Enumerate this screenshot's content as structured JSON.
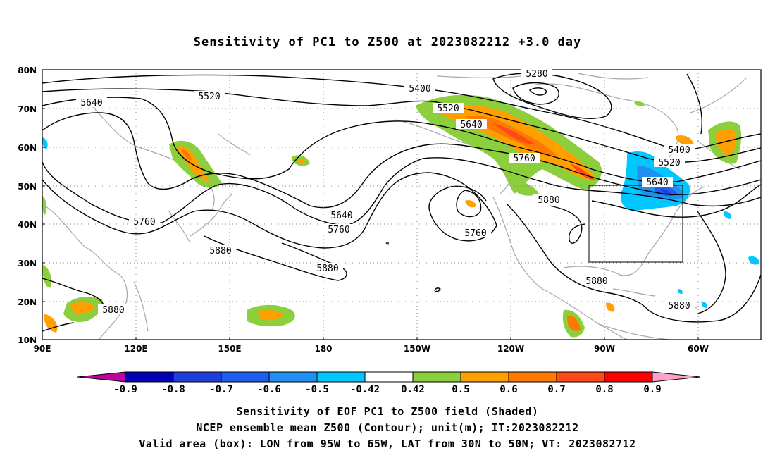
{
  "title": "Sensitivity of PC1 to Z500 at 2023082212 +3.0 day",
  "lat_labels": [
    "80N",
    "70N",
    "60N",
    "50N",
    "40N",
    "30N",
    "20N",
    "10N"
  ],
  "lon_labels": [
    "90E",
    "120E",
    "150E",
    "180",
    "150W",
    "120W",
    "90W",
    "60W"
  ],
  "contour_labels": [
    {
      "text": "5280"
    },
    {
      "text": "5400"
    },
    {
      "text": "5520"
    },
    {
      "text": "5640"
    },
    {
      "text": "5520"
    },
    {
      "text": "5640"
    },
    {
      "text": "5760"
    },
    {
      "text": "5880"
    },
    {
      "text": "5400"
    },
    {
      "text": "5520"
    },
    {
      "text": "5640"
    },
    {
      "text": "5640"
    },
    {
      "text": "5760"
    },
    {
      "text": "5760"
    },
    {
      "text": "5760"
    },
    {
      "text": "5880"
    },
    {
      "text": "5880"
    },
    {
      "text": "5880"
    },
    {
      "text": "5880"
    },
    {
      "text": "5880"
    }
  ],
  "colorbar": {
    "colors": [
      "#0000b4",
      "#1f3fd8",
      "#1f5fee",
      "#1f8ff0",
      "#00c8ff",
      "#ffffff",
      "#8ccf3c",
      "#ffa000",
      "#ff7800",
      "#ff4a18",
      "#ff0000"
    ],
    "low_color": "#c000a0",
    "high_color": "#ffa0c8",
    "labels": [
      "-0.9",
      "-0.8",
      "-0.7",
      "-0.6",
      "-0.5",
      "-0.42",
      "0.42",
      "0.5",
      "0.6",
      "0.7",
      "0.8",
      "0.9"
    ]
  },
  "footer": [
    "Sensitivity of EOF PC1 to Z500 field (Shaded)",
    "NCEP ensemble mean Z500 (Contour); unit(m); IT:2023082212",
    "Valid area (box): LON from 95W to 65W, LAT from 30N to 50N; VT: 2023082712"
  ],
  "valid_box": {
    "lon_min": "95W",
    "lon_max": "65W",
    "lat_min": "30N",
    "lat_max": "50N"
  }
}
